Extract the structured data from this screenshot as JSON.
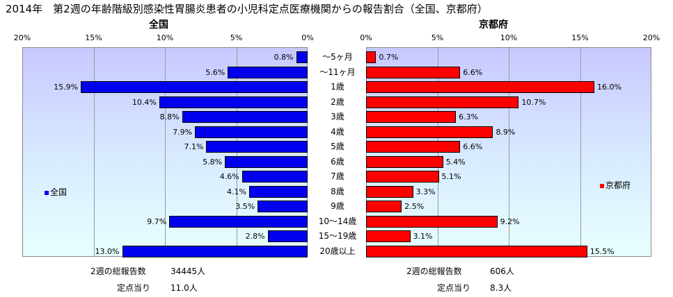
{
  "title": "2014年　第2週の年齢階級別感染性胃腸炎患者の小児科定点医療機関からの報告割合（全国、京都府）",
  "chart_data": {
    "type": "bar",
    "categories": [
      "～5ヶ月",
      "～11ヶ月",
      "1歳",
      "2歳",
      "3歳",
      "4歳",
      "5歳",
      "6歳",
      "7歳",
      "8歳",
      "9歳",
      "10～14歳",
      "15～19歳",
      "20歳以上"
    ],
    "series": [
      {
        "name": "全国",
        "values": [
          0.8,
          5.6,
          15.9,
          10.4,
          8.8,
          7.9,
          7.1,
          5.8,
          4.6,
          4.1,
          3.5,
          9.7,
          2.8,
          13.0
        ],
        "labels": [
          "0.8%",
          "5.6%",
          "15.9%",
          "10.4%",
          "8.8%",
          "7.9%",
          "7.1%",
          "5.8%",
          "4.6%",
          "4.1%",
          "3.5%",
          "9.7%",
          "2.8%",
          "13.0%"
        ],
        "color": "#0000ee"
      },
      {
        "name": "京都府",
        "values": [
          0.7,
          6.6,
          16.0,
          10.7,
          6.3,
          8.9,
          6.6,
          5.4,
          5.1,
          3.3,
          2.5,
          9.2,
          3.1,
          15.5
        ],
        "labels": [
          "0.7%",
          "6.6%",
          "16.0%",
          "10.7%",
          "6.3%",
          "8.9%",
          "6.6%",
          "5.4%",
          "5.1%",
          "3.3%",
          "2.5%",
          "9.2%",
          "3.1%",
          "15.5%"
        ],
        "color": "#ff0000"
      }
    ],
    "xlim": [
      0,
      20
    ],
    "xticks": [
      "20%",
      "15%",
      "10%",
      "5%",
      "0%",
      "0%",
      "5%",
      "10%",
      "15%",
      "20%"
    ],
    "panel_titles": [
      "全国",
      "京都府"
    ],
    "grid": true
  },
  "footer": {
    "national": {
      "total_label": "2週の総報告数",
      "total_value": "34445人",
      "per_label": "定点当り",
      "per_value": "11.0人"
    },
    "kyoto": {
      "total_label": "2週の総報告数",
      "total_value": "606人",
      "per_label": "定点当り",
      "per_value": "8.3人"
    }
  }
}
